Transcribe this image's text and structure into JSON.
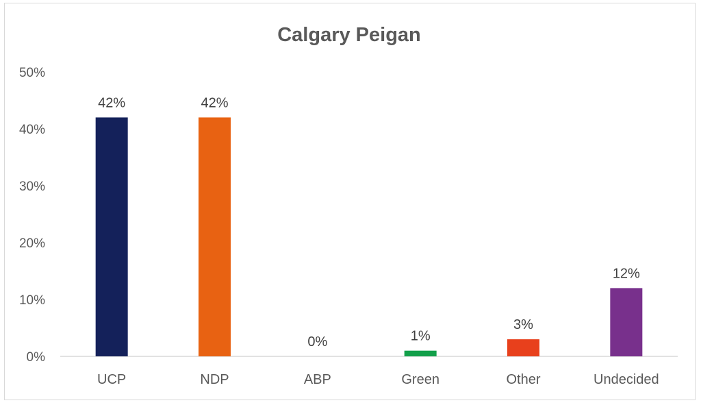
{
  "chart_data": {
    "type": "bar",
    "title": "Calgary Peigan",
    "categories": [
      "UCP",
      "NDP",
      "ABP",
      "Green",
      "Other",
      "Undecided"
    ],
    "values": [
      42,
      42,
      0,
      1,
      3,
      12
    ],
    "data_labels": [
      "42%",
      "42%",
      "0%",
      "1%",
      "3%",
      "12%"
    ],
    "colors": [
      "#14215a",
      "#e86212",
      "#a0a0a0",
      "#12a04a",
      "#e8401c",
      "#78308c"
    ],
    "ylim": [
      0,
      50
    ],
    "yticks": [
      "0%",
      "10%",
      "20%",
      "30%",
      "40%",
      "50%"
    ],
    "grid": false,
    "legend": "none"
  }
}
